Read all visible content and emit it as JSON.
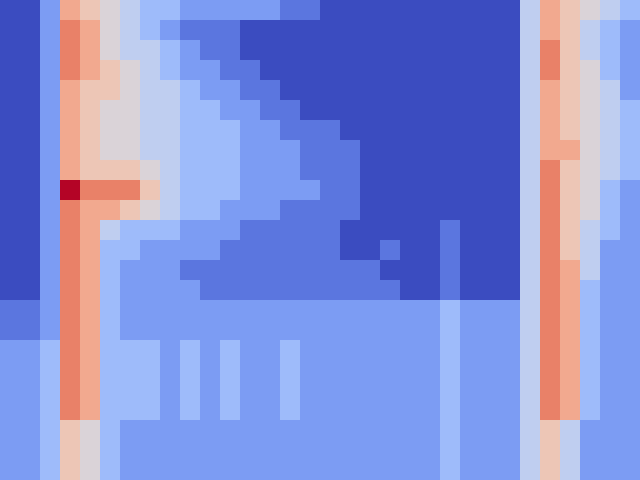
{
  "chart_data": {
    "type": "heatmap",
    "tick_labels": false,
    "zlim": [
      0,
      10
    ],
    "values": [
      [
        0,
        0,
        2,
        7,
        6,
        5,
        4,
        3,
        3,
        2,
        2,
        2,
        2,
        2,
        1,
        1,
        0,
        0,
        0,
        0,
        0,
        0,
        0,
        0,
        0,
        0,
        4,
        7,
        6,
        5,
        4,
        3
      ],
      [
        0,
        0,
        2,
        8,
        7,
        5,
        4,
        3,
        2,
        1,
        1,
        1,
        0,
        0,
        0,
        0,
        0,
        0,
        0,
        0,
        0,
        0,
        0,
        0,
        0,
        0,
        4,
        7,
        6,
        4,
        3,
        2
      ],
      [
        0,
        0,
        2,
        8,
        7,
        5,
        4,
        4,
        3,
        2,
        1,
        1,
        0,
        0,
        0,
        0,
        0,
        0,
        0,
        0,
        0,
        0,
        0,
        0,
        0,
        0,
        4,
        8,
        6,
        4,
        3,
        2
      ],
      [
        0,
        0,
        2,
        8,
        7,
        6,
        5,
        4,
        3,
        2,
        2,
        1,
        1,
        0,
        0,
        0,
        0,
        0,
        0,
        0,
        0,
        0,
        0,
        0,
        0,
        0,
        4,
        8,
        6,
        5,
        3,
        2
      ],
      [
        0,
        0,
        2,
        7,
        6,
        6,
        5,
        4,
        4,
        3,
        2,
        2,
        1,
        1,
        0,
        0,
        0,
        0,
        0,
        0,
        0,
        0,
        0,
        0,
        0,
        0,
        4,
        7,
        6,
        5,
        4,
        2
      ],
      [
        0,
        0,
        2,
        7,
        6,
        5,
        5,
        4,
        4,
        3,
        3,
        2,
        2,
        1,
        1,
        0,
        0,
        0,
        0,
        0,
        0,
        0,
        0,
        0,
        0,
        0,
        4,
        7,
        6,
        5,
        4,
        3
      ],
      [
        0,
        0,
        2,
        7,
        6,
        5,
        5,
        4,
        4,
        3,
        3,
        3,
        2,
        2,
        1,
        1,
        1,
        0,
        0,
        0,
        0,
        0,
        0,
        0,
        0,
        0,
        4,
        7,
        6,
        5,
        4,
        3
      ],
      [
        0,
        0,
        2,
        7,
        6,
        5,
        5,
        4,
        4,
        3,
        3,
        3,
        2,
        2,
        2,
        1,
        1,
        1,
        0,
        0,
        0,
        0,
        0,
        0,
        0,
        0,
        4,
        7,
        7,
        5,
        4,
        3
      ],
      [
        0,
        0,
        2,
        7,
        6,
        6,
        6,
        5,
        4,
        3,
        3,
        3,
        2,
        2,
        2,
        1,
        1,
        1,
        0,
        0,
        0,
        0,
        0,
        0,
        0,
        0,
        4,
        8,
        6,
        5,
        4,
        3
      ],
      [
        0,
        0,
        2,
        10,
        8,
        8,
        8,
        6,
        4,
        3,
        3,
        3,
        2,
        2,
        2,
        2,
        1,
        1,
        0,
        0,
        0,
        0,
        0,
        0,
        0,
        0,
        4,
        8,
        6,
        5,
        3,
        2
      ],
      [
        0,
        0,
        2,
        8,
        7,
        7,
        6,
        5,
        4,
        3,
        3,
        2,
        2,
        2,
        1,
        1,
        1,
        1,
        0,
        0,
        0,
        0,
        0,
        0,
        0,
        0,
        4,
        8,
        6,
        5,
        3,
        2
      ],
      [
        0,
        0,
        2,
        8,
        7,
        4,
        3,
        3,
        3,
        2,
        2,
        2,
        1,
        1,
        1,
        1,
        1,
        0,
        0,
        0,
        0,
        0,
        1,
        0,
        0,
        0,
        4,
        8,
        6,
        4,
        3,
        2
      ],
      [
        0,
        0,
        2,
        8,
        7,
        3,
        3,
        2,
        2,
        2,
        2,
        1,
        1,
        1,
        1,
        1,
        1,
        0,
        0,
        1,
        0,
        0,
        1,
        0,
        0,
        0,
        4,
        8,
        6,
        4,
        2,
        2
      ],
      [
        0,
        0,
        2,
        8,
        7,
        3,
        2,
        2,
        2,
        1,
        1,
        1,
        1,
        1,
        1,
        1,
        1,
        1,
        1,
        0,
        0,
        0,
        1,
        0,
        0,
        0,
        4,
        8,
        7,
        4,
        2,
        2
      ],
      [
        0,
        0,
        2,
        8,
        7,
        3,
        2,
        2,
        2,
        2,
        1,
        1,
        1,
        1,
        1,
        1,
        1,
        1,
        1,
        1,
        0,
        0,
        1,
        0,
        0,
        0,
        4,
        8,
        7,
        3,
        2,
        2
      ],
      [
        1,
        1,
        2,
        8,
        7,
        3,
        2,
        2,
        2,
        2,
        2,
        2,
        2,
        2,
        2,
        2,
        2,
        2,
        2,
        2,
        2,
        2,
        3,
        2,
        2,
        2,
        4,
        8,
        7,
        3,
        2,
        2
      ],
      [
        1,
        1,
        2,
        8,
        7,
        3,
        2,
        2,
        2,
        2,
        2,
        2,
        2,
        2,
        2,
        2,
        2,
        2,
        2,
        2,
        2,
        2,
        3,
        2,
        2,
        2,
        4,
        8,
        7,
        3,
        2,
        2
      ],
      [
        2,
        2,
        3,
        8,
        7,
        3,
        3,
        3,
        2,
        3,
        2,
        3,
        2,
        2,
        3,
        2,
        2,
        2,
        2,
        2,
        2,
        2,
        3,
        2,
        2,
        2,
        4,
        8,
        7,
        3,
        2,
        2
      ],
      [
        2,
        2,
        3,
        8,
        7,
        3,
        3,
        3,
        2,
        3,
        2,
        3,
        2,
        2,
        3,
        2,
        2,
        2,
        2,
        2,
        2,
        2,
        3,
        2,
        2,
        2,
        4,
        8,
        7,
        3,
        2,
        2
      ],
      [
        2,
        2,
        3,
        8,
        7,
        3,
        3,
        3,
        2,
        3,
        2,
        3,
        2,
        2,
        3,
        2,
        2,
        2,
        2,
        2,
        2,
        2,
        3,
        2,
        2,
        2,
        4,
        8,
        7,
        3,
        2,
        2
      ],
      [
        2,
        2,
        3,
        8,
        7,
        3,
        3,
        3,
        2,
        3,
        2,
        3,
        2,
        2,
        3,
        2,
        2,
        2,
        2,
        2,
        2,
        2,
        3,
        2,
        2,
        2,
        4,
        8,
        7,
        3,
        2,
        2
      ],
      [
        2,
        2,
        3,
        6,
        5,
        3,
        2,
        2,
        2,
        2,
        2,
        2,
        2,
        2,
        2,
        2,
        2,
        2,
        2,
        2,
        2,
        2,
        3,
        2,
        2,
        2,
        4,
        6,
        4,
        2,
        2,
        2
      ],
      [
        2,
        2,
        3,
        6,
        5,
        3,
        2,
        2,
        2,
        2,
        2,
        2,
        2,
        2,
        2,
        2,
        2,
        2,
        2,
        2,
        2,
        2,
        3,
        2,
        2,
        2,
        4,
        6,
        4,
        2,
        2,
        2
      ],
      [
        2,
        2,
        3,
        6,
        5,
        3,
        2,
        2,
        2,
        2,
        2,
        2,
        2,
        2,
        2,
        2,
        2,
        2,
        2,
        2,
        2,
        2,
        3,
        2,
        2,
        2,
        4,
        6,
        4,
        2,
        2,
        2
      ]
    ]
  }
}
